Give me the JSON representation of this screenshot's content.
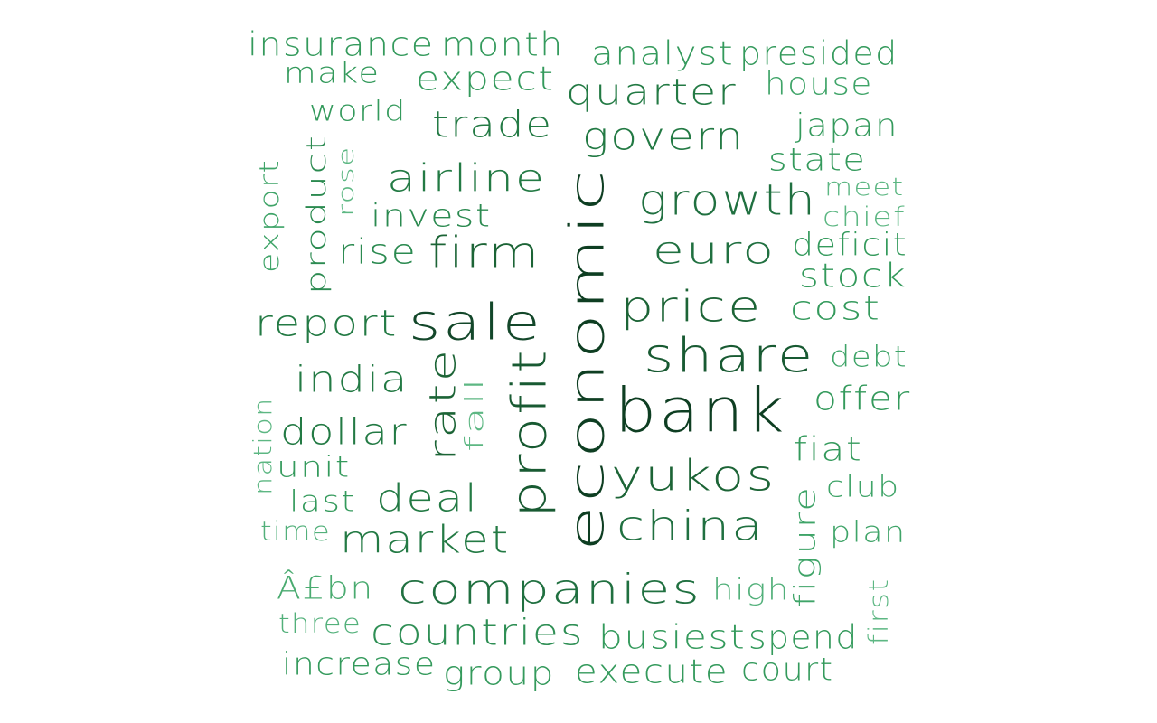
{
  "words": [
    {
      "text": "economic",
      "color": "#0e3e22"
    },
    {
      "text": "bank",
      "color": "#0e3e22"
    },
    {
      "text": "sale",
      "color": "#13472a"
    },
    {
      "text": "profit",
      "color": "#185a32"
    },
    {
      "text": "share",
      "color": "#185a32"
    },
    {
      "text": "price",
      "color": "#1c6436"
    },
    {
      "text": "yukos",
      "color": "#1c6436"
    },
    {
      "text": "firm",
      "color": "#1c6436"
    },
    {
      "text": "rate",
      "color": "#1c6436"
    },
    {
      "text": "growth",
      "color": "#207040"
    },
    {
      "text": "china",
      "color": "#207040"
    },
    {
      "text": "companies",
      "color": "#207040"
    },
    {
      "text": "euro",
      "color": "#207040"
    },
    {
      "text": "airline",
      "color": "#237a44"
    },
    {
      "text": "govern",
      "color": "#237a44"
    },
    {
      "text": "market",
      "color": "#237a44"
    },
    {
      "text": "deal",
      "color": "#237a44"
    },
    {
      "text": "dollar",
      "color": "#237a44"
    },
    {
      "text": "report",
      "color": "#237a44"
    },
    {
      "text": "india",
      "color": "#237a44"
    },
    {
      "text": "trade",
      "color": "#237a44"
    },
    {
      "text": "quarter",
      "color": "#237a44"
    },
    {
      "text": "rise",
      "color": "#2b8a50"
    },
    {
      "text": "invest",
      "color": "#2b8a50"
    },
    {
      "text": "product",
      "color": "#2b8a50"
    },
    {
      "text": "countries",
      "color": "#2f8f55"
    },
    {
      "text": "busiest",
      "color": "#349a5c"
    },
    {
      "text": "spend",
      "color": "#349a5c"
    },
    {
      "text": "execute",
      "color": "#349a5c"
    },
    {
      "text": "group",
      "color": "#349a5c"
    },
    {
      "text": "court",
      "color": "#349a5c"
    },
    {
      "text": "increase",
      "color": "#349a5c"
    },
    {
      "text": "expect",
      "color": "#349a5c"
    },
    {
      "text": "month",
      "color": "#349a5c"
    },
    {
      "text": "insurance",
      "color": "#349a5c"
    },
    {
      "text": "analyst",
      "color": "#349a5c"
    },
    {
      "text": "presided",
      "color": "#349a5c"
    },
    {
      "text": "stock",
      "color": "#349a5c"
    },
    {
      "text": "cost",
      "color": "#349a5c"
    },
    {
      "text": "offer",
      "color": "#349a5c"
    },
    {
      "text": "fiat",
      "color": "#349a5c"
    },
    {
      "text": "deficit",
      "color": "#349a5c"
    },
    {
      "text": "state",
      "color": "#349a5c"
    },
    {
      "text": "japan",
      "color": "#349a5c"
    },
    {
      "text": "unit",
      "color": "#349a5c"
    },
    {
      "text": "last",
      "color": "#349a5c"
    },
    {
      "text": "world",
      "color": "#349a5c"
    },
    {
      "text": "make",
      "color": "#349a5c"
    },
    {
      "text": "house",
      "color": "#3fa468"
    },
    {
      "text": "debt",
      "color": "#3fa468"
    },
    {
      "text": "plan",
      "color": "#3fa468"
    },
    {
      "text": "club",
      "color": "#3fa468"
    },
    {
      "text": "figure",
      "color": "#3fa468"
    },
    {
      "text": "export",
      "color": "#3fa468"
    },
    {
      "text": "Â£bn",
      "color": "#4aab70"
    },
    {
      "text": "three",
      "color": "#52b07a"
    },
    {
      "text": "time",
      "color": "#52b07a"
    },
    {
      "text": "high",
      "color": "#52b07a"
    },
    {
      "text": "meet",
      "color": "#5db783"
    },
    {
      "text": "chief",
      "color": "#5db783"
    },
    {
      "text": "fall",
      "color": "#5db783"
    },
    {
      "text": "rose",
      "color": "#5db783"
    },
    {
      "text": "nation",
      "color": "#5db783"
    },
    {
      "text": "first",
      "color": "#5db783"
    }
  ]
}
